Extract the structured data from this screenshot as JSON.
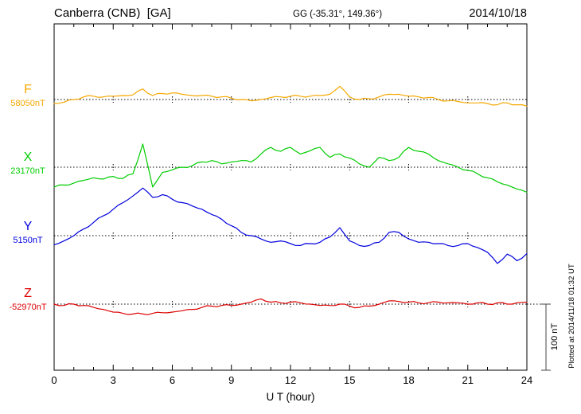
{
  "header": {
    "station": "Canberra (CNB)  [GA]",
    "coords": "GG (-35.31°, 149.36°)",
    "date": "2014/10/18"
  },
  "footer": {
    "xlabel": "U T (hour)"
  },
  "scale_bar": {
    "label": "100 nT",
    "nT": 100
  },
  "plotted_at": "Plotted at 2014/11/18 01:32 UT",
  "chart_data": {
    "type": "line",
    "title": "Canberra (CNB) [GA] magnetogram 2014/10/18",
    "xlabel": "U T (hour)",
    "x_range": [
      0,
      24
    ],
    "x_ticks": [
      0,
      3,
      6,
      9,
      12,
      15,
      18,
      21,
      24
    ],
    "sample_interval_hours": 0.5,
    "values_are": "offset_nT_from_series_baseline",
    "grid": "dotted horizontal baseline per series",
    "legend_position": "left margin labels",
    "series": [
      {
        "name": "F",
        "baseline_label": "58050nT",
        "baseline_nT": 58050,
        "color": "#f5a800",
        "values": [
          -6,
          -4,
          0,
          4,
          5,
          4,
          5,
          6,
          7,
          16,
          6,
          9,
          10,
          8,
          6,
          6,
          5,
          4,
          2,
          0,
          -2,
          0,
          3,
          4,
          5,
          5,
          5,
          6,
          8,
          20,
          4,
          0,
          1,
          4,
          8,
          8,
          5,
          4,
          3,
          0,
          -2,
          -3,
          -5,
          -5,
          -6,
          -8,
          -5,
          -8,
          -10
        ]
      },
      {
        "name": "X",
        "baseline_label": "23170nT",
        "baseline_nT": 23170,
        "color": "#00cc00",
        "values": [
          -30,
          -27,
          -24,
          -20,
          -16,
          -18,
          -14,
          -17,
          -10,
          35,
          -30,
          -8,
          -4,
          0,
          2,
          8,
          10,
          5,
          8,
          10,
          8,
          20,
          30,
          24,
          30,
          20,
          25,
          30,
          15,
          20,
          14,
          5,
          0,
          15,
          10,
          15,
          30,
          24,
          20,
          10,
          5,
          0,
          -5,
          -10,
          -16,
          -22,
          -27,
          -33,
          -38
        ]
      },
      {
        "name": "Y",
        "baseline_label": "5150nT",
        "baseline_nT": 5150,
        "color": "#0000dd",
        "values": [
          -14,
          -8,
          0,
          10,
          20,
          30,
          40,
          50,
          60,
          72,
          58,
          62,
          55,
          50,
          45,
          40,
          32,
          25,
          15,
          5,
          0,
          -5,
          -10,
          -8,
          -12,
          -15,
          -12,
          -10,
          -2,
          12,
          -8,
          -15,
          -15,
          -10,
          5,
          5,
          -5,
          -10,
          -10,
          -12,
          -15,
          -15,
          -12,
          -18,
          -25,
          -42,
          -28,
          -38,
          -27
        ]
      },
      {
        "name": "Z",
        "baseline_label": "-52970nT",
        "baseline_nT": -52970,
        "color": "#dd0000",
        "values": [
          0,
          -2,
          0,
          -2,
          -5,
          -8,
          -12,
          -14,
          -15,
          -15,
          -14,
          -13,
          -12,
          -10,
          -8,
          -5,
          -3,
          -2,
          -2,
          0,
          3,
          8,
          3,
          2,
          3,
          2,
          0,
          -2,
          -2,
          0,
          -3,
          -5,
          -3,
          0,
          5,
          4,
          3,
          2,
          2,
          3,
          2,
          2,
          0,
          2,
          0,
          2,
          0,
          2,
          3
        ]
      }
    ]
  }
}
